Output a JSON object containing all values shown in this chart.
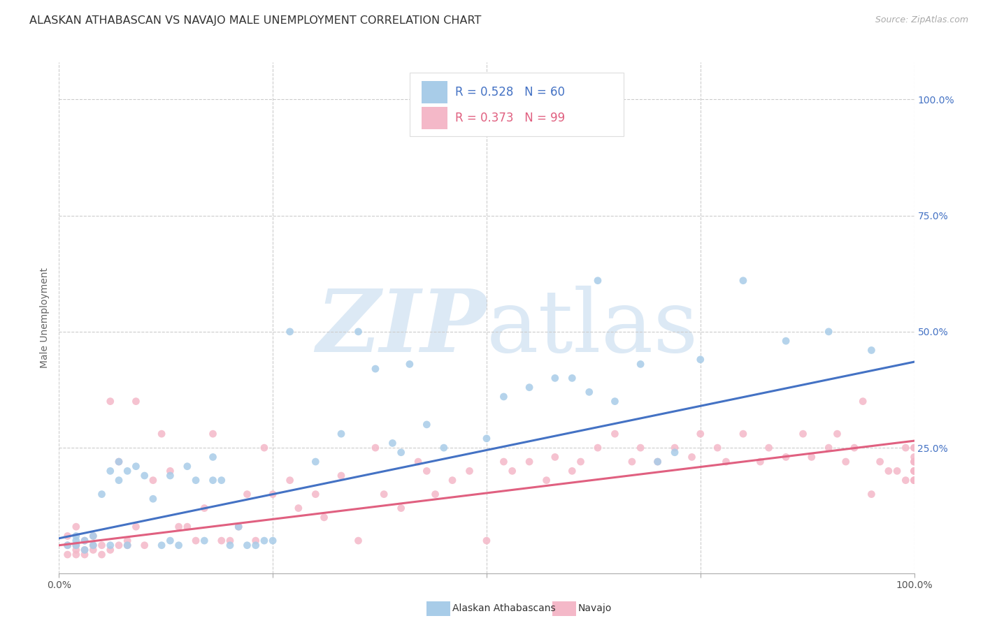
{
  "title": "ALASKAN ATHABASCAN VS NAVAJO MALE UNEMPLOYMENT CORRELATION CHART",
  "source": "Source: ZipAtlas.com",
  "ylabel": "Male Unemployment",
  "ytick_labels": [
    "100.0%",
    "75.0%",
    "50.0%",
    "25.0%"
  ],
  "ytick_positions": [
    1.0,
    0.75,
    0.5,
    0.25
  ],
  "legend_label1": "Alaskan Athabascans",
  "legend_label2": "Navajo",
  "legend_R1": "R = 0.528",
  "legend_N1": "N = 60",
  "legend_R2": "R = 0.373",
  "legend_N2": "N = 99",
  "color_blue": "#a8cce8",
  "color_pink": "#f4b8c8",
  "color_blue_line": "#4472c4",
  "color_pink_line": "#e06080",
  "color_blue_text": "#4472c4",
  "color_pink_text": "#e06080",
  "watermark_color": "#dce9f5",
  "blue_x": [
    0.01,
    0.02,
    0.02,
    0.02,
    0.03,
    0.03,
    0.04,
    0.04,
    0.05,
    0.06,
    0.06,
    0.07,
    0.07,
    0.08,
    0.08,
    0.09,
    0.1,
    0.11,
    0.12,
    0.13,
    0.13,
    0.14,
    0.15,
    0.16,
    0.17,
    0.18,
    0.18,
    0.19,
    0.2,
    0.21,
    0.22,
    0.23,
    0.24,
    0.25,
    0.27,
    0.3,
    0.33,
    0.35,
    0.37,
    0.39,
    0.4,
    0.41,
    0.43,
    0.45,
    0.5,
    0.52,
    0.55,
    0.58,
    0.6,
    0.62,
    0.63,
    0.65,
    0.68,
    0.7,
    0.72,
    0.75,
    0.8,
    0.85,
    0.9,
    0.95
  ],
  "blue_y": [
    0.04,
    0.05,
    0.06,
    0.04,
    0.03,
    0.05,
    0.04,
    0.06,
    0.15,
    0.04,
    0.2,
    0.18,
    0.22,
    0.04,
    0.2,
    0.21,
    0.19,
    0.14,
    0.04,
    0.05,
    0.19,
    0.04,
    0.21,
    0.18,
    0.05,
    0.18,
    0.23,
    0.18,
    0.04,
    0.08,
    0.04,
    0.04,
    0.05,
    0.05,
    0.5,
    0.22,
    0.28,
    0.5,
    0.42,
    0.26,
    0.24,
    0.43,
    0.3,
    0.25,
    0.27,
    0.36,
    0.38,
    0.4,
    0.4,
    0.37,
    0.61,
    0.35,
    0.43,
    0.22,
    0.24,
    0.44,
    0.61,
    0.48,
    0.5,
    0.46
  ],
  "pink_x": [
    0.01,
    0.01,
    0.01,
    0.02,
    0.02,
    0.02,
    0.02,
    0.03,
    0.03,
    0.03,
    0.04,
    0.04,
    0.04,
    0.05,
    0.05,
    0.06,
    0.06,
    0.07,
    0.07,
    0.08,
    0.08,
    0.09,
    0.09,
    0.1,
    0.11,
    0.12,
    0.13,
    0.14,
    0.15,
    0.16,
    0.17,
    0.18,
    0.19,
    0.2,
    0.21,
    0.22,
    0.23,
    0.24,
    0.25,
    0.27,
    0.28,
    0.3,
    0.31,
    0.33,
    0.35,
    0.37,
    0.38,
    0.4,
    0.42,
    0.43,
    0.44,
    0.46,
    0.48,
    0.5,
    0.52,
    0.53,
    0.55,
    0.57,
    0.58,
    0.6,
    0.61,
    0.63,
    0.65,
    0.67,
    0.68,
    0.7,
    0.72,
    0.74,
    0.75,
    0.77,
    0.78,
    0.8,
    0.82,
    0.83,
    0.85,
    0.87,
    0.88,
    0.9,
    0.91,
    0.92,
    0.93,
    0.94,
    0.95,
    0.96,
    0.97,
    0.98,
    0.99,
    0.99,
    1.0,
    1.0,
    1.0,
    1.0,
    1.0,
    1.0,
    1.0,
    1.0,
    1.0,
    1.0,
    1.0
  ],
  "pink_y": [
    0.04,
    0.02,
    0.06,
    0.03,
    0.04,
    0.02,
    0.08,
    0.05,
    0.03,
    0.02,
    0.03,
    0.04,
    0.06,
    0.02,
    0.04,
    0.03,
    0.35,
    0.04,
    0.22,
    0.04,
    0.05,
    0.35,
    0.08,
    0.04,
    0.18,
    0.28,
    0.2,
    0.08,
    0.08,
    0.05,
    0.12,
    0.28,
    0.05,
    0.05,
    0.08,
    0.15,
    0.05,
    0.25,
    0.15,
    0.18,
    0.12,
    0.15,
    0.1,
    0.19,
    0.05,
    0.25,
    0.15,
    0.12,
    0.22,
    0.2,
    0.15,
    0.18,
    0.2,
    0.05,
    0.22,
    0.2,
    0.22,
    0.18,
    0.23,
    0.2,
    0.22,
    0.25,
    0.28,
    0.22,
    0.25,
    0.22,
    0.25,
    0.23,
    0.28,
    0.25,
    0.22,
    0.28,
    0.22,
    0.25,
    0.23,
    0.28,
    0.23,
    0.25,
    0.28,
    0.22,
    0.25,
    0.35,
    0.15,
    0.22,
    0.2,
    0.2,
    0.18,
    0.25,
    0.23,
    0.2,
    0.25,
    0.18,
    0.22,
    0.18,
    0.2,
    0.22,
    0.25,
    0.18,
    0.2
  ],
  "blue_trend_x0": 0.0,
  "blue_trend_x1": 1.0,
  "blue_trend_y0": 0.055,
  "blue_trend_y1": 0.435,
  "pink_trend_x0": 0.0,
  "pink_trend_x1": 1.0,
  "pink_trend_y0": 0.04,
  "pink_trend_y1": 0.265,
  "xlim": [
    0.0,
    1.0
  ],
  "ylim": [
    -0.02,
    1.08
  ],
  "background_color": "#ffffff",
  "grid_color": "#cccccc",
  "dot_size": 60,
  "dot_alpha": 0.85
}
